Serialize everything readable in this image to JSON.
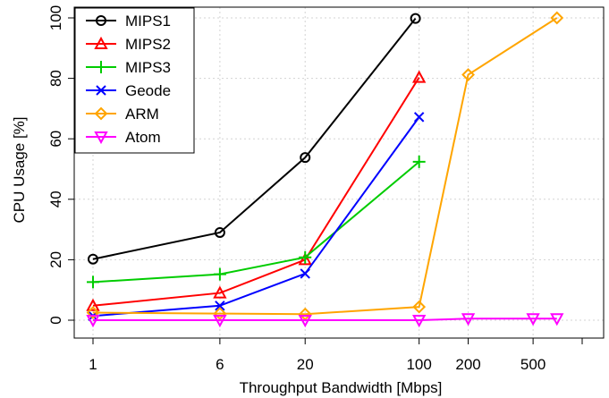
{
  "chart_data": {
    "type": "line",
    "xlabel": "Throughput Bandwidth [Mbps]",
    "ylabel": "CPU Usage [%]",
    "x_scale": "log",
    "x_ticks": [
      1,
      6,
      20,
      100,
      200,
      500
    ],
    "x_tick_labels": [
      "1",
      "6",
      "20",
      "100",
      "200",
      "500"
    ],
    "x_extra_tick": 1000,
    "y_ticks": [
      0,
      20,
      40,
      60,
      80,
      100
    ],
    "y_tick_labels": [
      "0",
      "20",
      "40",
      "60",
      "80",
      "100"
    ],
    "ylim": [
      0,
      100
    ],
    "grid": true,
    "legend_position": "top-left",
    "series": [
      {
        "name": "MIPS1",
        "color": "#000000",
        "marker": "circle",
        "x": [
          1,
          6,
          20,
          95
        ],
        "y": [
          20.2,
          29,
          53.8,
          99.8
        ]
      },
      {
        "name": "MIPS2",
        "color": "#ff0000",
        "marker": "triangle-up",
        "x": [
          1,
          6,
          20,
          100
        ],
        "y": [
          4.8,
          9,
          20,
          80.3
        ]
      },
      {
        "name": "MIPS3",
        "color": "#00cc00",
        "marker": "plus",
        "x": [
          1,
          6,
          20,
          100
        ],
        "y": [
          12.6,
          15.2,
          20.8,
          52.4
        ]
      },
      {
        "name": "Geode",
        "color": "#0000ff",
        "marker": "cross",
        "x": [
          1,
          6,
          20,
          100
        ],
        "y": [
          1.4,
          4.8,
          15.4,
          67.2
        ]
      },
      {
        "name": "ARM",
        "color": "#ffa500",
        "marker": "diamond",
        "x": [
          1,
          6,
          20,
          100,
          200,
          700
        ],
        "y": [
          2.5,
          2.2,
          2,
          4.4,
          81.2,
          100
        ]
      },
      {
        "name": "Atom",
        "color": "#ff00ff",
        "marker": "triangle-down",
        "x": [
          1,
          6,
          20,
          100,
          200,
          500,
          700
        ],
        "y": [
          0,
          0,
          0,
          0,
          0.5,
          0.5,
          0.5
        ]
      }
    ]
  }
}
